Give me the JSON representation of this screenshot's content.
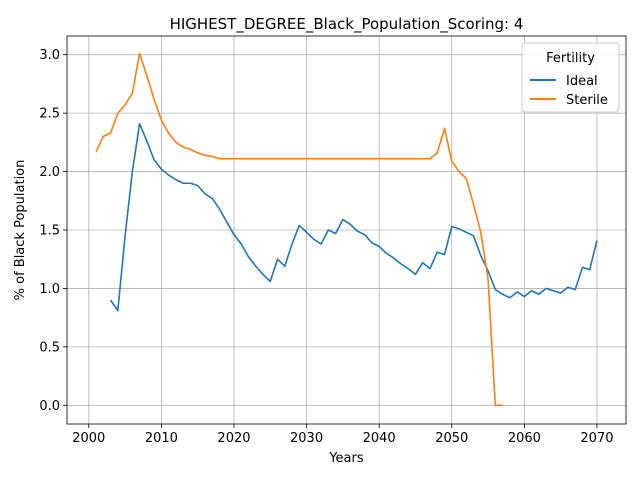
{
  "chart_data": {
    "type": "line",
    "title": "HIGHEST_DEGREE_Black_Population_Scoring: 4",
    "xlabel": "Years",
    "ylabel": "% of Black Population",
    "xlim": [
      1997,
      2074
    ],
    "ylim": [
      -0.16,
      3.16
    ],
    "x_ticks": [
      2000,
      2010,
      2020,
      2030,
      2040,
      2050,
      2060,
      2070
    ],
    "y_ticks": [
      0.0,
      0.5,
      1.0,
      1.5,
      2.0,
      2.5,
      3.0
    ],
    "x_tick_labels": [
      "2000",
      "2010",
      "2020",
      "2030",
      "2040",
      "2050",
      "2060",
      "2070"
    ],
    "y_tick_labels": [
      "0.0",
      "0.5",
      "1.0",
      "1.5",
      "2.0",
      "2.5",
      "3.0"
    ],
    "grid": true,
    "legend": {
      "title": "Fertility",
      "position": "top-right"
    },
    "series": [
      {
        "name": "Ideal",
        "color": "#1f77b4",
        "x": [
          2003,
          2004,
          2005,
          2006,
          2007,
          2008,
          2009,
          2010,
          2011,
          2012,
          2013,
          2014,
          2015,
          2016,
          2017,
          2018,
          2019,
          2020,
          2021,
          2022,
          2023,
          2024,
          2025,
          2026,
          2027,
          2028,
          2029,
          2030,
          2031,
          2032,
          2033,
          2034,
          2035,
          2036,
          2037,
          2038,
          2039,
          2040,
          2041,
          2042,
          2043,
          2044,
          2045,
          2046,
          2047,
          2048,
          2049,
          2050,
          2051,
          2052,
          2053,
          2054,
          2055,
          2056,
          2057,
          2058,
          2059,
          2060,
          2061,
          2062,
          2063,
          2064,
          2065,
          2066,
          2067,
          2068,
          2069,
          2070
        ],
        "y": [
          0.9,
          0.81,
          1.45,
          2.0,
          2.41,
          2.26,
          2.1,
          2.02,
          1.97,
          1.93,
          1.9,
          1.9,
          1.88,
          1.81,
          1.77,
          1.68,
          1.57,
          1.46,
          1.38,
          1.27,
          1.19,
          1.12,
          1.06,
          1.25,
          1.19,
          1.38,
          1.54,
          1.48,
          1.42,
          1.38,
          1.5,
          1.47,
          1.59,
          1.55,
          1.49,
          1.46,
          1.39,
          1.36,
          1.3,
          1.26,
          1.21,
          1.17,
          1.12,
          1.22,
          1.17,
          1.31,
          1.29,
          1.53,
          1.51,
          1.48,
          1.45,
          1.28,
          1.15,
          0.99,
          0.95,
          0.92,
          0.97,
          0.93,
          0.98,
          0.95,
          1.0,
          0.98,
          0.96,
          1.01,
          0.99,
          1.18,
          1.16,
          1.41
        ]
      },
      {
        "name": "Sterile",
        "color": "#ff7f0e",
        "x": [
          2001,
          2002,
          2003,
          2004,
          2005,
          2006,
          2007,
          2008,
          2009,
          2010,
          2011,
          2012,
          2013,
          2014,
          2015,
          2016,
          2017,
          2018,
          2019,
          2020,
          2021,
          2022,
          2023,
          2024,
          2025,
          2026,
          2027,
          2028,
          2029,
          2030,
          2031,
          2032,
          2033,
          2034,
          2035,
          2036,
          2037,
          2038,
          2039,
          2040,
          2041,
          2042,
          2043,
          2044,
          2045,
          2046,
          2047,
          2048,
          2049,
          2050,
          2051,
          2052,
          2053,
          2054,
          2055,
          2056,
          2057
        ],
        "y": [
          2.17,
          2.3,
          2.33,
          2.5,
          2.57,
          2.67,
          3.01,
          2.82,
          2.62,
          2.44,
          2.33,
          2.25,
          2.21,
          2.19,
          2.16,
          2.14,
          2.13,
          2.11,
          2.11,
          2.11,
          2.11,
          2.11,
          2.11,
          2.11,
          2.11,
          2.11,
          2.11,
          2.11,
          2.11,
          2.11,
          2.11,
          2.11,
          2.11,
          2.11,
          2.11,
          2.11,
          2.11,
          2.11,
          2.11,
          2.11,
          2.11,
          2.11,
          2.11,
          2.11,
          2.11,
          2.11,
          2.11,
          2.16,
          2.37,
          2.09,
          2.0,
          1.94,
          1.72,
          1.48,
          1.08,
          0.0,
          0.0
        ]
      }
    ]
  }
}
